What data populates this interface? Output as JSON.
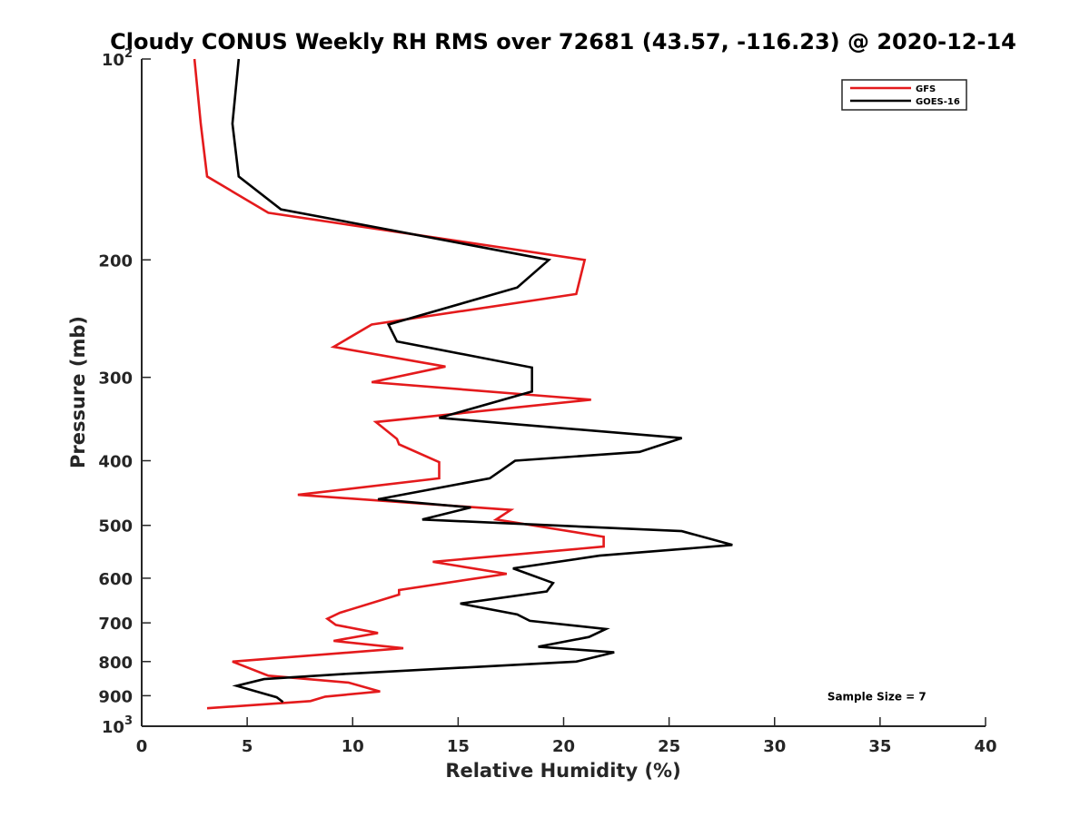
{
  "chart_data": {
    "type": "line",
    "title": "Cloudy CONUS Weekly RH RMS over 72681 (43.57, -116.23) @ 2020-12-14",
    "xlabel": "Relative Humidity (%)",
    "ylabel": "Pressure (mb)",
    "xlim": [
      0,
      40
    ],
    "ylim": [
      100,
      1000
    ],
    "y_scale": "log",
    "y_reversed": true,
    "grid": false,
    "legend_position": "top-right",
    "x_ticks": [
      "0",
      "5",
      "10",
      "15",
      "20",
      "25",
      "30",
      "35",
      "40"
    ],
    "y_ticks": [
      {
        "value": 100,
        "base": "10",
        "exp": "2"
      },
      {
        "value": 200,
        "label": "200"
      },
      {
        "value": 300,
        "label": "300"
      },
      {
        "value": 400,
        "label": "400"
      },
      {
        "value": 500,
        "label": "500"
      },
      {
        "value": 600,
        "label": "600"
      },
      {
        "value": 700,
        "label": "700"
      },
      {
        "value": 800,
        "label": "800"
      },
      {
        "value": 900,
        "label": "900"
      },
      {
        "value": 1000,
        "base": "10",
        "exp": "3"
      }
    ],
    "series": [
      {
        "name": "GFS",
        "color": "#e41a1c",
        "points": [
          [
            2.5,
            100
          ],
          [
            2.8,
            125
          ],
          [
            3.1,
            150
          ],
          [
            6.0,
            170
          ],
          [
            21.0,
            200
          ],
          [
            20.6,
            225
          ],
          [
            10.9,
            250
          ],
          [
            9.1,
            270
          ],
          [
            14.4,
            289
          ],
          [
            10.9,
            305
          ],
          [
            21.3,
            324
          ],
          [
            11.1,
            350
          ],
          [
            12.1,
            371
          ],
          [
            12.2,
            378
          ],
          [
            14.1,
            402
          ],
          [
            14.1,
            425
          ],
          [
            7.4,
            450
          ],
          [
            17.5,
            474
          ],
          [
            16.8,
            490
          ],
          [
            21.9,
            520
          ],
          [
            21.9,
            538
          ],
          [
            13.8,
            567
          ],
          [
            17.3,
            591
          ],
          [
            12.2,
            625
          ],
          [
            12.2,
            635
          ],
          [
            9.4,
            676
          ],
          [
            8.8,
            690
          ],
          [
            9.2,
            705
          ],
          [
            11.2,
            725
          ],
          [
            9.1,
            745
          ],
          [
            12.4,
            764
          ],
          [
            4.3,
            800
          ],
          [
            6.0,
            840
          ],
          [
            9.8,
            860
          ],
          [
            11.3,
            887
          ],
          [
            8.7,
            903
          ],
          [
            8.0,
            917
          ],
          [
            3.1,
            940
          ]
        ]
      },
      {
        "name": "GOES-16",
        "color": "#000000",
        "points": [
          [
            4.6,
            100
          ],
          [
            4.3,
            125
          ],
          [
            4.6,
            150
          ],
          [
            6.6,
            168
          ],
          [
            19.3,
            200
          ],
          [
            17.8,
            220
          ],
          [
            11.7,
            250
          ],
          [
            12.1,
            265
          ],
          [
            18.5,
            290
          ],
          [
            18.5,
            315
          ],
          [
            14.1,
            345
          ],
          [
            25.6,
            370
          ],
          [
            23.6,
            388
          ],
          [
            17.7,
            400
          ],
          [
            16.5,
            425
          ],
          [
            11.2,
            457
          ],
          [
            15.6,
            470
          ],
          [
            13.3,
            490
          ],
          [
            25.6,
            510
          ],
          [
            28.0,
            535
          ],
          [
            21.7,
            555
          ],
          [
            17.6,
            580
          ],
          [
            19.5,
            610
          ],
          [
            19.2,
            628
          ],
          [
            15.1,
            655
          ],
          [
            17.8,
            680
          ],
          [
            18.4,
            695
          ],
          [
            22.0,
            715
          ],
          [
            21.2,
            735
          ],
          [
            18.8,
            760
          ],
          [
            22.4,
            775
          ],
          [
            20.6,
            800
          ],
          [
            9.6,
            835
          ],
          [
            5.8,
            850
          ],
          [
            4.5,
            870
          ],
          [
            6.4,
            905
          ],
          [
            6.7,
            920
          ]
        ]
      }
    ],
    "annotations": [
      {
        "text": "Sample Size = 7",
        "x": 32.5,
        "y": 900
      }
    ]
  }
}
